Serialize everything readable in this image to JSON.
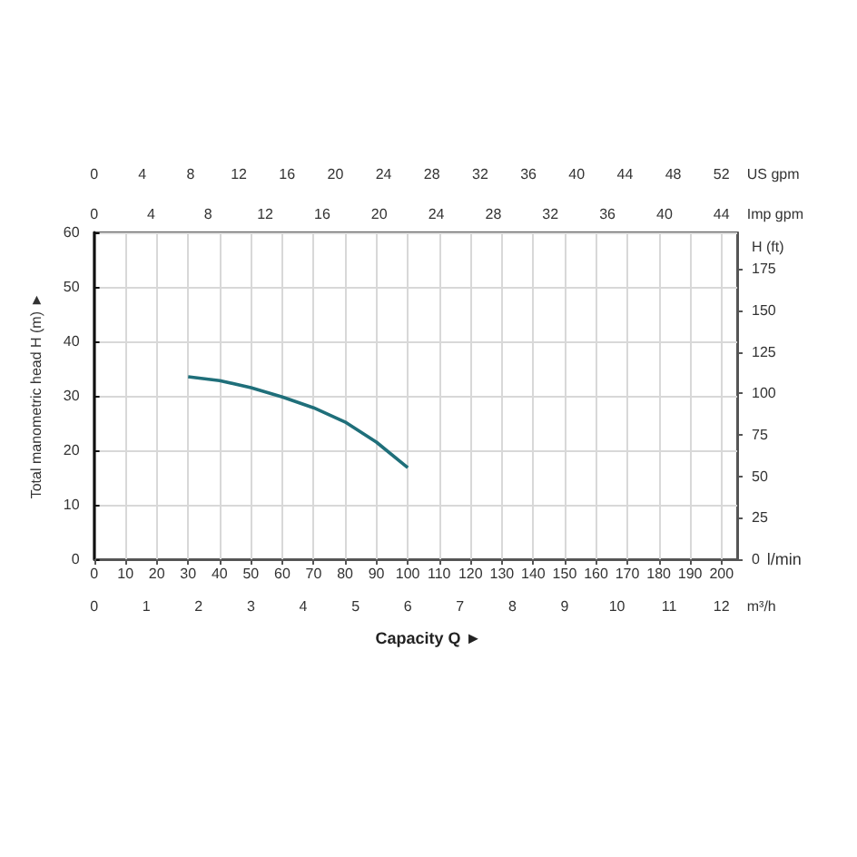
{
  "chart_data": {
    "type": "line",
    "ylabel": "Total manometric head H (m) ►",
    "y2label": "H (ft)",
    "xlabel": "l/min",
    "annotations": [
      "Capacity Q ►",
      "0 1 2 3 4 5 6 7 8 9 10 11 12 m³/h",
      "0 4 8 12 16 20 24 28 32 36 40 44 Imp gpm",
      "0 4 8 12 16 20 24 28 32 36 40 44 48 52 US gpm"
    ],
    "x": [
      30,
      40,
      50,
      60,
      70,
      80,
      90,
      100
    ],
    "series": [
      {
        "color": "#1f6f7a",
        "values": [
          33.5,
          32.8,
          31.5,
          29.8,
          27.8,
          25.2,
          21.5,
          16.8
        ]
      }
    ],
    "xlim": [
      0,
      205
    ],
    "xticks": [
      0,
      10,
      20,
      30,
      40,
      50,
      60,
      70,
      80,
      90,
      100,
      110,
      120,
      130,
      140,
      150,
      160,
      170,
      180,
      190,
      200
    ],
    "ylim": [
      0,
      60
    ],
    "yticks": [
      0,
      10,
      20,
      30,
      40,
      50,
      60
    ],
    "y2lim": [
      0,
      197
    ],
    "y2ticks": [
      0,
      25,
      50,
      75,
      100,
      125,
      150,
      175
    ],
    "grid": true,
    "marker": "none",
    "line_style": "solid"
  }
}
